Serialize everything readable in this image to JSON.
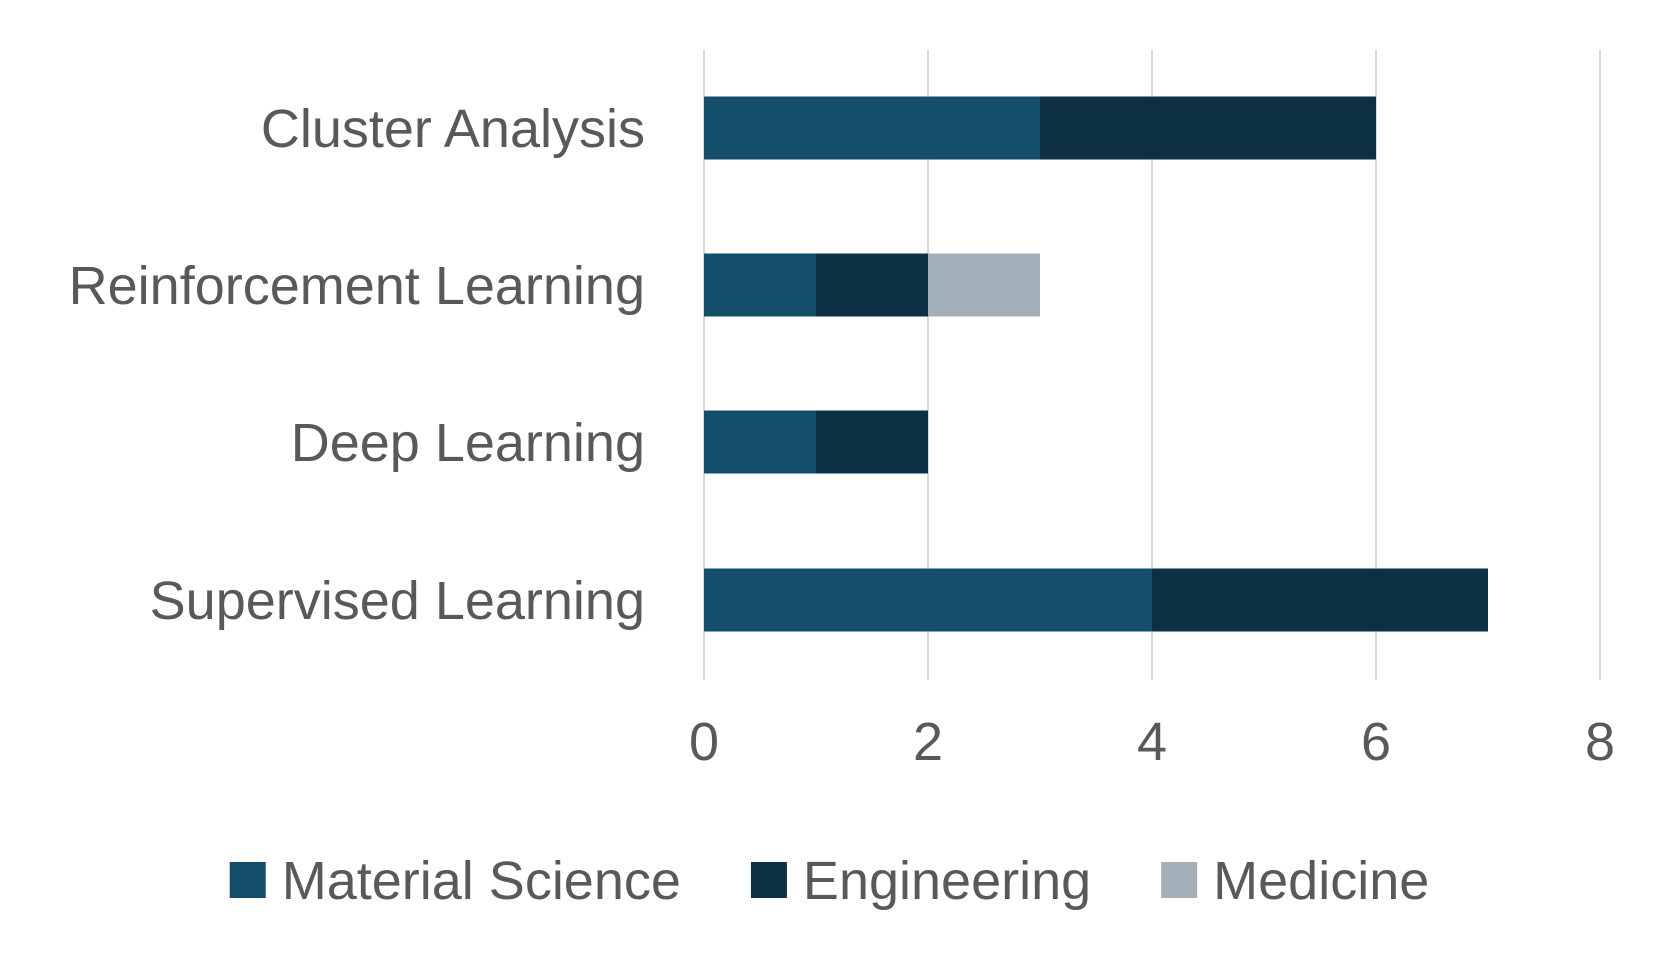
{
  "chart_data": {
    "type": "bar",
    "orientation": "horizontal",
    "stacked": true,
    "title": "",
    "xlabel": "",
    "ylabel": "",
    "xlim": [
      0,
      8
    ],
    "x_ticks": [
      0,
      2,
      4,
      6,
      8
    ],
    "x_tick_labels": [
      "0",
      "2",
      "4",
      "6",
      "8"
    ],
    "grid": true,
    "legend_position": "bottom",
    "categories": [
      "Cluster Analysis",
      "Reinforcement Learning",
      "Deep Learning",
      "Supervised Learning"
    ],
    "series": [
      {
        "name": "Material Science",
        "color": "#124E69",
        "values": [
          3,
          1,
          1,
          4
        ]
      },
      {
        "name": "Engineering",
        "color": "#0E3044",
        "values": [
          3,
          1,
          1,
          3
        ]
      },
      {
        "name": "Medicine",
        "color": "#A2AEB8",
        "values": [
          0,
          1,
          0,
          0
        ]
      }
    ]
  },
  "colors": {
    "gridline": "#D9D9D9",
    "text": "#595959"
  }
}
